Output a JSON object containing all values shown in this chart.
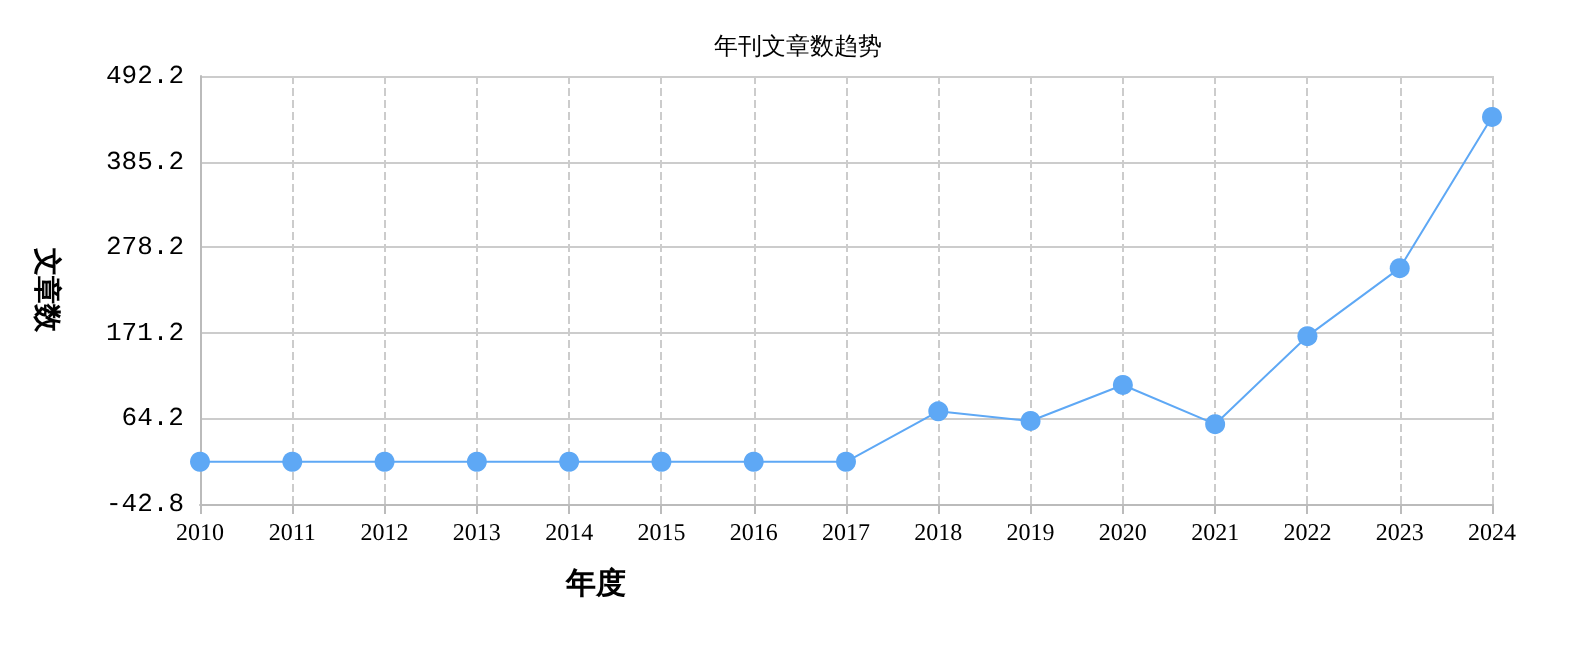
{
  "chart_data": {
    "type": "line",
    "title": "年刊文章数趋势",
    "xlabel": "年度",
    "ylabel": "文章数",
    "categories": [
      "2010",
      "2011",
      "2012",
      "2013",
      "2014",
      "2015",
      "2016",
      "2017",
      "2018",
      "2019",
      "2020",
      "2021",
      "2022",
      "2023",
      "2024"
    ],
    "series": [
      {
        "color": "#5ea8f5",
        "values": [
          10,
          10,
          10,
          10,
          10,
          10,
          10,
          10,
          73,
          61,
          106,
          57,
          167,
          252,
          441
        ]
      }
    ],
    "ylim": [
      -42.8,
      492.2
    ],
    "yticks": [
      -42.8,
      64.2,
      171.2,
      278.2,
      385.2,
      492.2
    ],
    "grid": true,
    "marker": "circle",
    "line_style": "solid"
  }
}
